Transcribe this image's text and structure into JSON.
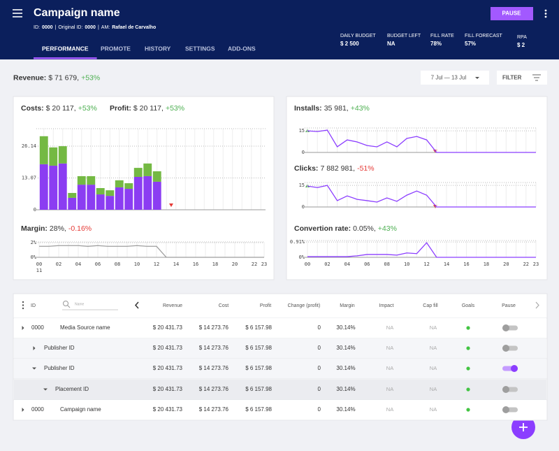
{
  "header": {
    "title": "Campaign name",
    "meta": [
      {
        "label": "ID:",
        "value": "0000"
      },
      {
        "label": "Original ID:",
        "value": "0000"
      },
      {
        "label": "AM:",
        "value": "Rafael de Carvalho"
      }
    ],
    "meta_separator": "|",
    "pause_button": "PAUSE"
  },
  "tabs": [
    "PERFORMANCE",
    "PROMOTE",
    "HISTORY",
    "SETTINGS",
    "ADD-ONS"
  ],
  "active_tab": 0,
  "stats": [
    {
      "label": "DAILY BUDGET",
      "value": "$ 2 500"
    },
    {
      "label": "BUDGET LEFT",
      "value": "NA"
    },
    {
      "label": "FILL RATE",
      "value": "78%"
    },
    {
      "label": "FILL FORECAST",
      "value": "57%"
    },
    {
      "label": "RPA",
      "value": "$ 2"
    }
  ],
  "revenue": {
    "label": "Revenue:",
    "value": "$ 71 679,",
    "change": "+53%"
  },
  "date_range": "7 Jul — 13 Jul",
  "filter": "FILTER",
  "chart_data": [
    {
      "type": "bar",
      "stacked": true,
      "headers": [
        {
          "label": "Costs:",
          "value": "$ 20 117,",
          "change": "+53%"
        },
        {
          "label": "Profit:",
          "value": "$ 20 117,",
          "change": "+53%"
        }
      ],
      "categories": [
        null,
        null,
        null,
        null,
        null,
        null,
        null,
        null,
        null,
        null,
        null,
        null,
        null,
        null,
        null,
        null,
        null,
        null,
        null,
        null,
        null,
        null,
        null,
        null
      ],
      "series": [
        {
          "color": "#8b3df2",
          "values": [
            18.7,
            18.1,
            19.0,
            4.9,
            10.3,
            10.3,
            6.3,
            5.7,
            9.2,
            8.6,
            13.5,
            13.8,
            11.5,
            null,
            null,
            null,
            null,
            null,
            null,
            null,
            null,
            null,
            null,
            null
          ]
        },
        {
          "color": "#74b943",
          "values": [
            11.5,
            7.5,
            7.1,
            2.0,
            3.5,
            3.5,
            2.6,
            2.3,
            2.9,
            2.3,
            3.7,
            5.2,
            4.3,
            null,
            null,
            null,
            null,
            null,
            null,
            null,
            null,
            null,
            null,
            null
          ]
        }
      ],
      "ylim": [
        0,
        33.3
      ],
      "yticks": [
        0,
        13.07,
        26.14
      ],
      "grid": true
    },
    {
      "type": "line",
      "label": "Margin:",
      "value": "28%,",
      "change": "-0.16%",
      "color": "#9e9e9e",
      "categories": [
        "00",
        null,
        "02",
        null,
        "04",
        null,
        "06",
        null,
        "08",
        null,
        "10",
        null,
        "12",
        null,
        "14",
        null,
        "16",
        null,
        "18",
        null,
        "20",
        null,
        "22",
        "23"
      ],
      "annotation": "11",
      "values": [
        1.5,
        1.5,
        1.6,
        1.6,
        1.6,
        1.5,
        1.6,
        1.5,
        1.5,
        1.5,
        1.6,
        1.5,
        1.5,
        0,
        0,
        0,
        0,
        0,
        0,
        0,
        0,
        0,
        0,
        0
      ],
      "ylim": [
        0,
        2.1
      ],
      "yticks": [
        {
          "value": 0,
          "label": "0%"
        },
        {
          "value": 2,
          "label": "2%"
        }
      ],
      "grid": true
    },
    {
      "type": "line",
      "label": "Installs:",
      "value": "35 981,",
      "change": "+43%",
      "color": "#8b3dff",
      "categories": [
        null,
        null,
        null,
        null,
        null,
        null,
        null,
        null,
        null,
        null,
        null,
        null,
        null,
        null,
        null,
        null,
        null,
        null,
        null,
        null,
        null,
        null,
        null,
        null
      ],
      "values": [
        15,
        14.5,
        15.5,
        3.9,
        8.7,
        7.3,
        4.8,
        3.9,
        7.3,
        3.9,
        9.7,
        11.1,
        8.7,
        0,
        0,
        0,
        0,
        0,
        0,
        0,
        0,
        0,
        0,
        0
      ],
      "ylim": [
        0,
        17
      ],
      "yticks": [
        0,
        15
      ],
      "grid": true
    },
    {
      "type": "line",
      "label": "Clicks:",
      "value": "7 882 981,",
      "change": "-51%",
      "color": "#8b3dff",
      "categories": [
        null,
        null,
        null,
        null,
        null,
        null,
        null,
        null,
        null,
        null,
        null,
        null,
        null,
        null,
        null,
        null,
        null,
        null,
        null,
        null,
        null,
        null,
        null,
        null
      ],
      "values": [
        14.5,
        13.5,
        15,
        4.4,
        7.7,
        5.3,
        4.4,
        3.4,
        6.3,
        3.9,
        8.2,
        11.1,
        8.2,
        0,
        0,
        0,
        0,
        0,
        0,
        0,
        0,
        0,
        0,
        0
      ],
      "ylim": [
        0,
        17
      ],
      "yticks": [
        0,
        15
      ],
      "grid": true
    },
    {
      "type": "line",
      "label": "Convertion rate:",
      "value": "0.05%,",
      "change": "+43%",
      "color": "#8b3dff",
      "categories": [
        "00",
        null,
        "02",
        null,
        "04",
        null,
        "06",
        null,
        "08",
        null,
        "10",
        null,
        "12",
        null,
        "14",
        null,
        "16",
        null,
        "18",
        null,
        "20",
        null,
        "22",
        "23"
      ],
      "values": [
        0.04,
        0.04,
        0.04,
        0.04,
        0.04,
        0.09,
        0.17,
        0.17,
        0.17,
        0.13,
        0.26,
        0.22,
        0.87,
        0,
        0,
        0,
        0,
        0,
        0,
        0,
        0,
        0,
        0,
        0
      ],
      "ylim": [
        0,
        1.0
      ],
      "yticks": [
        {
          "value": 0,
          "label": "0%"
        },
        {
          "value": 0.91,
          "label": "0.91%"
        }
      ],
      "grid": true
    }
  ],
  "table": {
    "columns": [
      "ID",
      "Name",
      "Revenue",
      "Cost",
      "Profit",
      "Change (profit)",
      "Margin",
      "Impact",
      "Cap fill",
      "Goals",
      "Pause"
    ],
    "rows": [
      {
        "level": 0,
        "expanded": false,
        "id": "0000",
        "name": "Media Source name",
        "revenue": "$ 20 431.73",
        "cost": "$ 14 273.76",
        "profit": "$ 6 157.98",
        "change": "0",
        "margin": "30.14%",
        "impact": "NA",
        "cap_fill": "NA",
        "pause": false
      },
      {
        "level": 1,
        "expanded": false,
        "name": "Publisher ID",
        "revenue": "$ 20 431.73",
        "cost": "$ 14 273.76",
        "profit": "$ 6 157.98",
        "change": "0",
        "margin": "30.14%",
        "impact": "NA",
        "cap_fill": "NA",
        "pause": false
      },
      {
        "level": 1,
        "expanded": true,
        "name": "Publisher ID",
        "revenue": "$ 20 431.73",
        "cost": "$ 14 273.76",
        "profit": "$ 6 157.98",
        "change": "0",
        "margin": "30.14%",
        "impact": "NA",
        "cap_fill": "NA",
        "pause": true
      },
      {
        "level": 2,
        "expanded": true,
        "name": "Placement ID",
        "revenue": "$ 20 431.73",
        "cost": "$ 14 273.76",
        "profit": "$ 6 157.98",
        "change": "0",
        "margin": "30.14%",
        "impact": "NA",
        "cap_fill": "NA",
        "pause": false
      },
      {
        "level": 0,
        "expanded": false,
        "id": "0000",
        "name": "Campaign name",
        "revenue": "$ 20 431.73",
        "cost": "$ 14 273.76",
        "profit": "$ 6 157.98",
        "change": "0",
        "margin": "30.14%",
        "impact": "NA",
        "cap_fill": "NA",
        "pause": false
      }
    ]
  }
}
